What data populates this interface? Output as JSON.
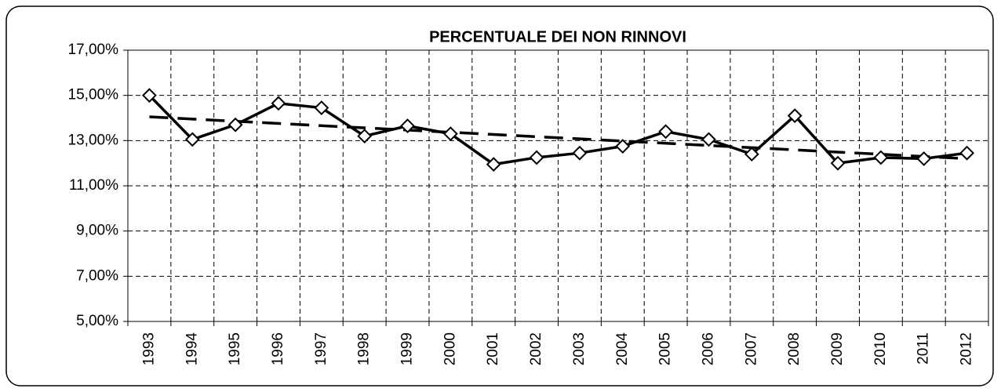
{
  "chart_data": {
    "type": "line",
    "title": "PERCENTUALE DEI NON RINNOVI",
    "categories": [
      "1993",
      "1994",
      "1995",
      "1996",
      "1997",
      "1998",
      "1999",
      "2000",
      "2001",
      "2002",
      "2003",
      "2004",
      "2005",
      "2006",
      "2007",
      "2008",
      "2009",
      "2010",
      "2011",
      "2012"
    ],
    "series": [
      {
        "color": "#000000",
        "marker": "diamond",
        "values": [
          15.0,
          13.05,
          13.7,
          14.65,
          14.45,
          13.2,
          13.65,
          13.3,
          11.95,
          12.25,
          12.45,
          12.75,
          13.4,
          13.05,
          12.4,
          14.1,
          12.0,
          12.25,
          12.2,
          12.45
        ]
      }
    ],
    "trendline": {
      "color": "#000000",
      "dashed": true,
      "values": [
        14.05,
        12.2
      ]
    },
    "ylim": [
      5,
      17
    ],
    "yticks": [
      {
        "value": 5,
        "label": "5,00%"
      },
      {
        "value": 7,
        "label": "7,00%"
      },
      {
        "value": 9,
        "label": "9,00%"
      },
      {
        "value": 11,
        "label": "11,00%"
      },
      {
        "value": 13,
        "label": "13,00%"
      },
      {
        "value": 15,
        "label": "15,00%"
      },
      {
        "value": 17,
        "label": "17,00%"
      }
    ],
    "grid": true
  }
}
